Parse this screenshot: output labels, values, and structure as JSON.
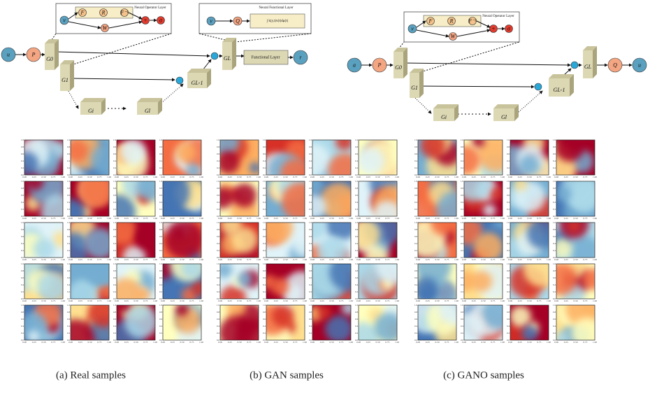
{
  "left_diagram": {
    "input": "u",
    "lift": "P",
    "layers": [
      "G0",
      "G1",
      "Gi",
      "Gl",
      "GL-1",
      "GL"
    ],
    "functional_layer": "Functional Layer",
    "output": "r",
    "operator_inset": {
      "title": "Neural Operator Layer",
      "input": "v",
      "ops": [
        "F",
        "R",
        "F⁻¹"
      ],
      "weight": "W",
      "sum": "+",
      "activation": "σ"
    },
    "functional_inset": {
      "title": "Neural Functional Layer",
      "input": "v",
      "map": "Q",
      "integral": "∫ k(y,t)v(t)dμ(t)"
    }
  },
  "right_diagram": {
    "input": "a",
    "lift": "P",
    "layers": [
      "G0",
      "G1",
      "Gi",
      "Gl",
      "GL-1",
      "GL"
    ],
    "projection": "Q",
    "output": "u",
    "operator_inset": {
      "title": "Neural Operator Layer",
      "input": "v",
      "ops": [
        "F",
        "R",
        "F⁻¹"
      ],
      "weight": "W",
      "sum": "+",
      "activation": "σ"
    }
  },
  "tile_axes": {
    "xticks": [
      "0.00",
      "0.25",
      "0.50",
      "0.75",
      "1.00"
    ],
    "yticks": [
      "0.0",
      "0.2",
      "0.4",
      "0.6",
      "0.8",
      "1.0"
    ]
  },
  "captions": [
    "(a) Real samples",
    "(b) GAN samples",
    "(c) GANO samples"
  ]
}
